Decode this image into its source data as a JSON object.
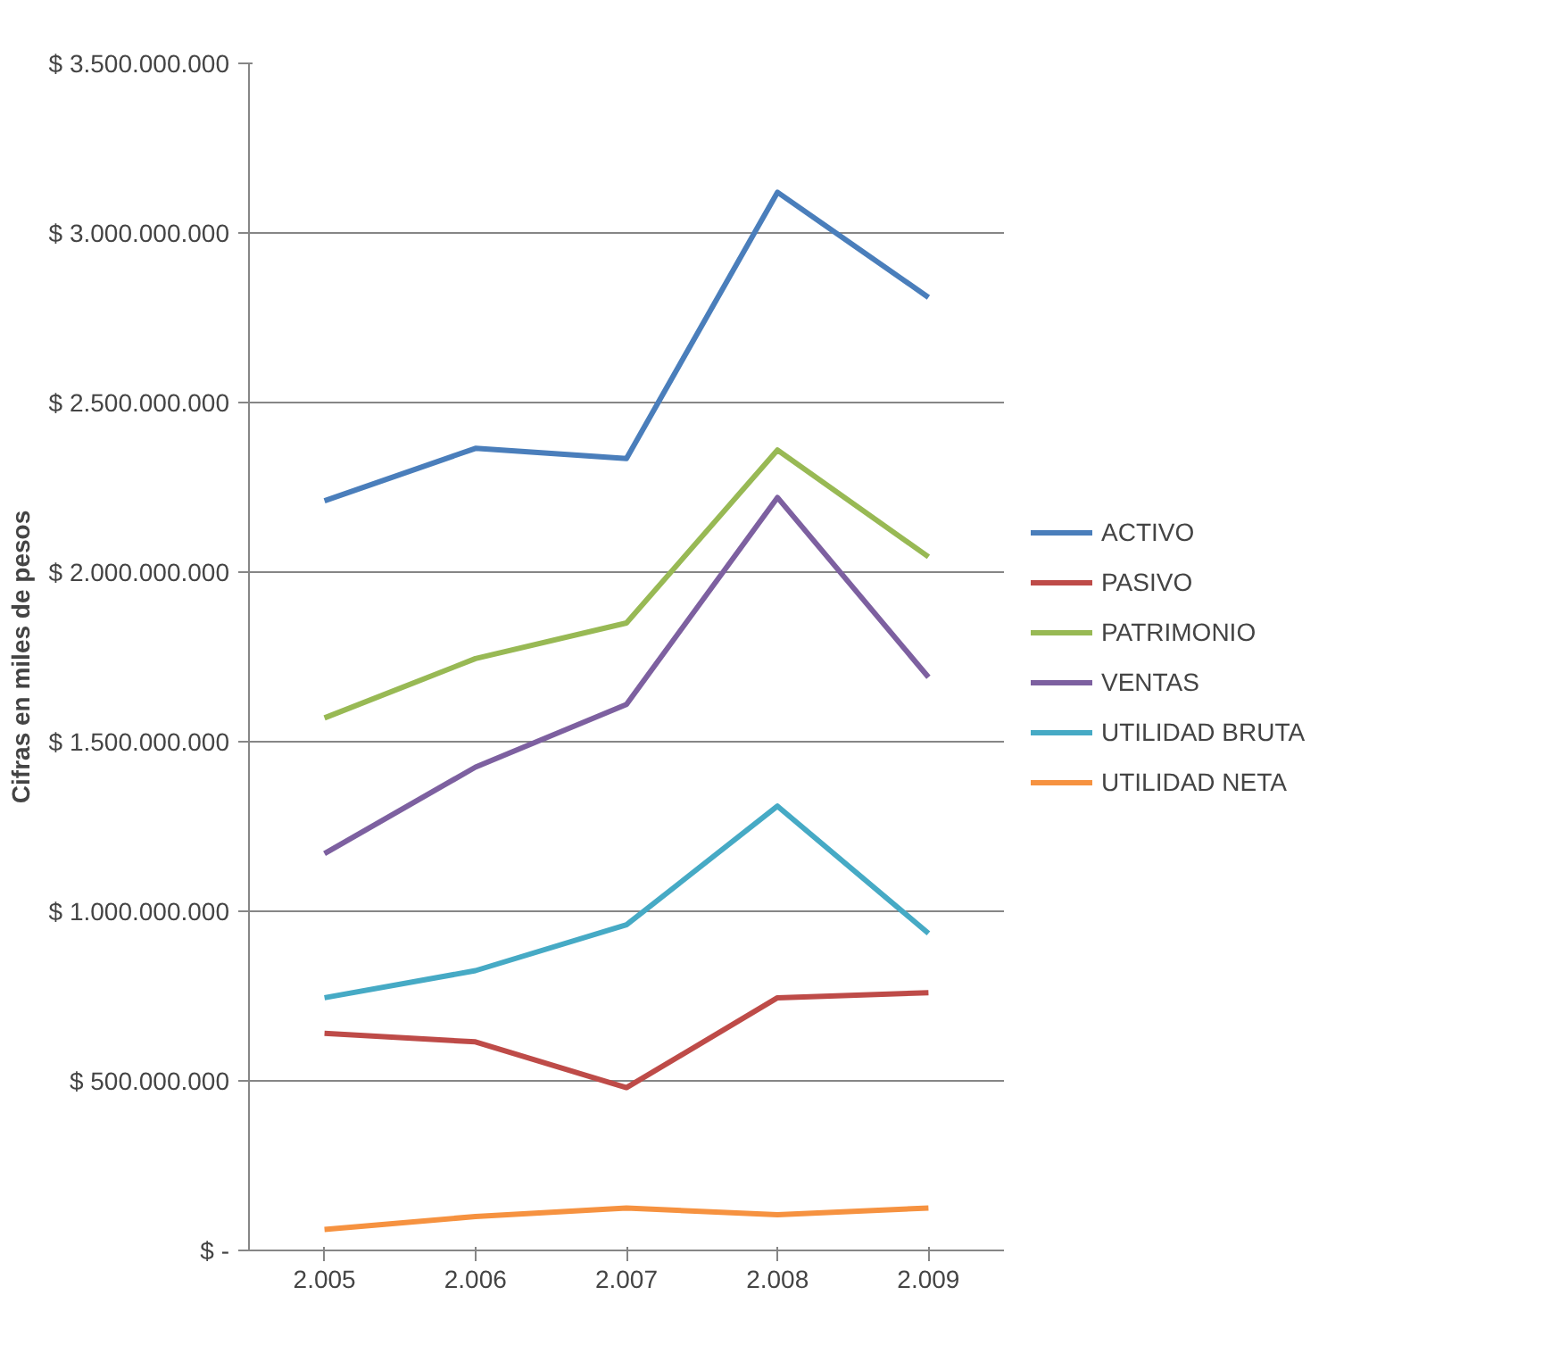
{
  "chart_data": {
    "type": "line",
    "ylabel": "Cifras en miles de pesos",
    "categories": [
      "2.005",
      "2.006",
      "2.007",
      "2.008",
      "2.009"
    ],
    "series": [
      {
        "name": "ACTIVO",
        "color": "#4a7ebb",
        "values": [
          2210000000,
          2365000000,
          2335000000,
          3120000000,
          2810000000
        ]
      },
      {
        "name": "PASIVO",
        "color": "#be4b48",
        "values": [
          640000000,
          615000000,
          480000000,
          745000000,
          760000000
        ]
      },
      {
        "name": "PATRIMONIO",
        "color": "#98b954",
        "values": [
          1570000000,
          1745000000,
          1850000000,
          2360000000,
          2045000000
        ]
      },
      {
        "name": "VENTAS",
        "color": "#7d60a0",
        "values": [
          1170000000,
          1425000000,
          1610000000,
          2220000000,
          1690000000
        ]
      },
      {
        "name": "UTILIDAD BRUTA",
        "color": "#46aac5",
        "values": [
          745000000,
          825000000,
          960000000,
          1310000000,
          935000000
        ]
      },
      {
        "name": "UTILIDAD NETA",
        "color": "#f69240",
        "values": [
          62000000,
          100000000,
          125000000,
          105000000,
          125000000
        ]
      }
    ],
    "ylim": [
      0,
      3500000000
    ],
    "yticks": [
      {
        "value": 0,
        "label": "$ -"
      },
      {
        "value": 500000000,
        "label": "$ 500.000.000"
      },
      {
        "value": 1000000000,
        "label": "$ 1.000.000.000"
      },
      {
        "value": 1500000000,
        "label": "$ 1.500.000.000"
      },
      {
        "value": 2000000000,
        "label": "$ 2.000.000.000"
      },
      {
        "value": 2500000000,
        "label": "$ 2.500.000.000"
      },
      {
        "value": 3000000000,
        "label": "$ 3.000.000.000"
      },
      {
        "value": 3500000000,
        "label": "$ 3.500.000.000"
      }
    ],
    "grid": "y",
    "legend": "right",
    "marker": "none",
    "line_style": "solid"
  }
}
